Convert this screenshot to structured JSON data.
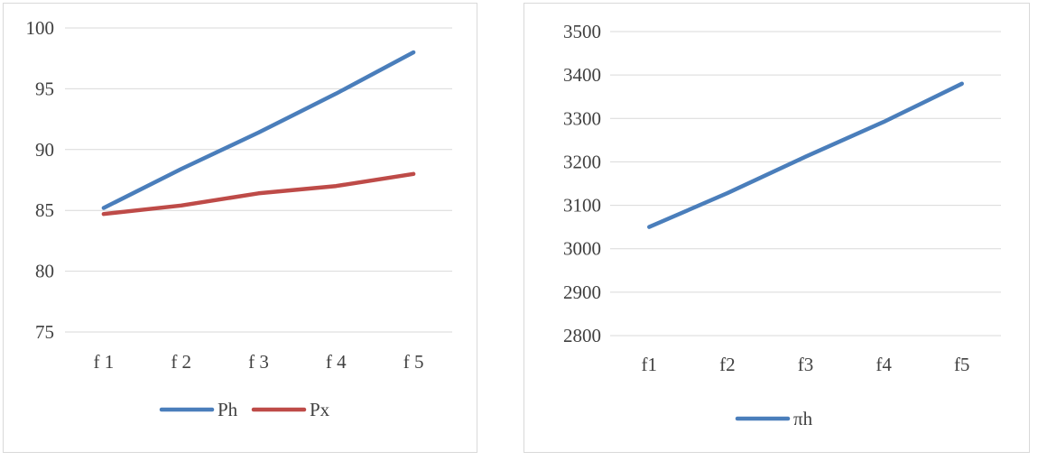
{
  "chart_data": [
    {
      "type": "line",
      "categories": [
        "f 1",
        "f 2",
        "f 3",
        "f 4",
        "f 5"
      ],
      "series": [
        {
          "name": "Ph",
          "values": [
            85.2,
            88.4,
            91.4,
            94.6,
            98.0
          ],
          "color": "#4a7ebb"
        },
        {
          "name": "Px",
          "values": [
            84.7,
            85.4,
            86.4,
            87.0,
            88.0
          ],
          "color": "#be4b48"
        }
      ],
      "ylim": [
        75,
        100
      ],
      "yticks": [
        75,
        80,
        85,
        90,
        95,
        100
      ],
      "grid": true,
      "legend": "bottom"
    },
    {
      "type": "line",
      "categories": [
        "f1",
        "f2",
        "f3",
        "f4",
        "f5"
      ],
      "series": [
        {
          "name": "πh",
          "values": [
            3050,
            3128,
            3212,
            3292,
            3380
          ],
          "color": "#4a7ebb"
        }
      ],
      "ylim": [
        2800,
        3500
      ],
      "yticks": [
        2800,
        2900,
        3000,
        3100,
        3200,
        3300,
        3400,
        3500
      ],
      "grid": true,
      "legend": "bottom"
    }
  ]
}
